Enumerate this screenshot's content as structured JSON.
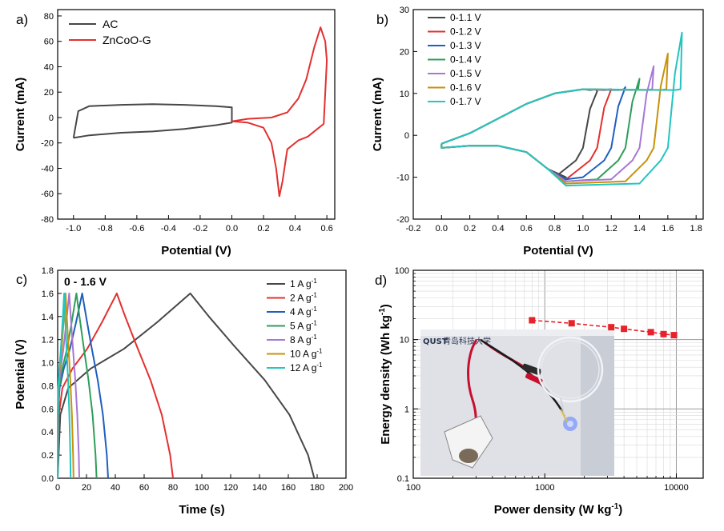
{
  "chart_data": [
    {
      "panel_label": "a)",
      "type": "line",
      "xlabel": "Potential (V)",
      "ylabel": "Current (mA)",
      "xlim": [
        -1.1,
        0.65
      ],
      "ylim": [
        -80,
        85
      ],
      "xticks": [
        -1.0,
        -0.8,
        -0.6,
        -0.4,
        -0.2,
        0.0,
        0.2,
        0.4,
        0.6
      ],
      "xtick_labels": [
        "-1.0",
        "-0.8",
        "-0.6",
        "-0.4",
        "-0.2",
        "0.0",
        "0.2",
        "0.4",
        "0.6"
      ],
      "yticks": [
        -80,
        -60,
        -40,
        -20,
        0,
        20,
        40,
        60,
        80
      ],
      "ytick_labels": [
        "-80",
        "-60",
        "-40",
        "-20",
        "0",
        "20",
        "40",
        "60",
        "80"
      ],
      "legend_position": "top-left",
      "series": [
        {
          "name": "AC",
          "color": "#474747",
          "points": [
            [
              -1.0,
              -16
            ],
            [
              -0.9,
              -14
            ],
            [
              -0.7,
              -12
            ],
            [
              -0.5,
              -11
            ],
            [
              -0.3,
              -9
            ],
            [
              -0.1,
              -6
            ],
            [
              0.0,
              -4
            ],
            [
              0.0,
              8
            ],
            [
              -0.1,
              9
            ],
            [
              -0.3,
              10
            ],
            [
              -0.5,
              10.5
            ],
            [
              -0.7,
              10
            ],
            [
              -0.9,
              9
            ],
            [
              -0.97,
              5
            ],
            [
              -1.0,
              -16
            ]
          ]
        },
        {
          "name": "ZnCoO-G",
          "color": "#e3302f",
          "points": [
            [
              0.0,
              -3
            ],
            [
              0.1,
              -4
            ],
            [
              0.2,
              -8
            ],
            [
              0.25,
              -20
            ],
            [
              0.28,
              -40
            ],
            [
              0.3,
              -62
            ],
            [
              0.32,
              -50
            ],
            [
              0.35,
              -25
            ],
            [
              0.42,
              -18
            ],
            [
              0.48,
              -15
            ],
            [
              0.53,
              -10
            ],
            [
              0.58,
              -5
            ],
            [
              0.6,
              45
            ],
            [
              0.59,
              60
            ],
            [
              0.56,
              71
            ],
            [
              0.52,
              55
            ],
            [
              0.47,
              30
            ],
            [
              0.42,
              15
            ],
            [
              0.35,
              4
            ],
            [
              0.25,
              0
            ],
            [
              0.1,
              -1
            ],
            [
              0.0,
              -3
            ]
          ]
        }
      ]
    },
    {
      "panel_label": "b)",
      "type": "line",
      "xlabel": "Potential (V)",
      "ylabel": "Current (mA)",
      "xlim": [
        -0.2,
        1.85
      ],
      "ylim": [
        -20,
        30
      ],
      "xticks": [
        -0.2,
        0.0,
        0.2,
        0.4,
        0.6,
        0.8,
        1.0,
        1.2,
        1.4,
        1.6,
        1.8
      ],
      "xtick_labels": [
        "-0.2",
        "0.0",
        "0.2",
        "0.4",
        "0.6",
        "0.8",
        "1.0",
        "1.2",
        "1.4",
        "1.6",
        "1.8"
      ],
      "yticks": [
        -20,
        -10,
        0,
        10,
        20,
        30
      ],
      "ytick_labels": [
        "-20",
        "-10",
        "0",
        "10",
        "20",
        "30"
      ],
      "legend_position": "top-left",
      "series": [
        {
          "name": "0-1.1 V",
          "color": "#474747",
          "vmax": 1.1,
          "top": 10.5,
          "bottom": -10
        },
        {
          "name": "0-1.2 V",
          "color": "#e3302f",
          "vmax": 1.2,
          "top": 11.0,
          "bottom": -10.5
        },
        {
          "name": "0-1.3 V",
          "color": "#1f5fbf",
          "vmax": 1.3,
          "top": 11.5,
          "bottom": -10.5
        },
        {
          "name": "0-1.4 V",
          "color": "#2f9e5a",
          "vmax": 1.4,
          "top": 13.5,
          "bottom": -11
        },
        {
          "name": "0-1.5 V",
          "color": "#a678d6",
          "vmax": 1.5,
          "top": 16.5,
          "bottom": -11
        },
        {
          "name": "0-1.6 V",
          "color": "#c8920b",
          "vmax": 1.6,
          "top": 19.5,
          "bottom": -11.5
        },
        {
          "name": "0-1.7 V",
          "color": "#23c4c1",
          "vmax": 1.7,
          "top": 24.5,
          "bottom": -12
        }
      ]
    },
    {
      "panel_label": "c)",
      "type": "line",
      "xlabel": "Time (s)",
      "ylabel": "Potential (V)",
      "annotation": "0 - 1.6 V",
      "xlim": [
        0,
        200
      ],
      "ylim": [
        0,
        1.8
      ],
      "xticks": [
        0,
        20,
        40,
        60,
        80,
        100,
        120,
        140,
        160,
        180,
        200
      ],
      "xtick_labels": [
        "0",
        "20",
        "40",
        "60",
        "80",
        "100",
        "120",
        "140",
        "160",
        "180",
        "200"
      ],
      "yticks": [
        0.0,
        0.2,
        0.4,
        0.6,
        0.8,
        1.0,
        1.2,
        1.4,
        1.6,
        1.8
      ],
      "ytick_labels": [
        "0.0",
        "0.2",
        "0.4",
        "0.6",
        "0.8",
        "1.0",
        "1.2",
        "1.4",
        "1.6",
        "1.8"
      ],
      "legend_position": "top-right",
      "series": [
        {
          "name": "1 A g",
          "sup": "-1",
          "color": "#474747",
          "peak_t": 92,
          "end_t": 178
        },
        {
          "name": "2 A g",
          "sup": "-1",
          "color": "#e3302f",
          "peak_t": 41,
          "end_t": 80
        },
        {
          "name": "4 A g",
          "sup": "-1",
          "color": "#1f5fbf",
          "peak_t": 17,
          "end_t": 35
        },
        {
          "name": "5 A g",
          "sup": "-1",
          "color": "#2f9e5a",
          "peak_t": 13,
          "end_t": 27
        },
        {
          "name": "8 A g",
          "sup": "-1",
          "color": "#a678d6",
          "peak_t": 8,
          "end_t": 15
        },
        {
          "name": "10 A g",
          "sup": "-1",
          "color": "#c8920b",
          "peak_t": 5.5,
          "end_t": 11
        },
        {
          "name": "12 A g",
          "sup": "-1",
          "color": "#23c4c1",
          "peak_t": 4.5,
          "end_t": 9
        }
      ]
    },
    {
      "panel_label": "d)",
      "type": "scatter",
      "xlabel": "Power density (W kg",
      "xlabel_sup": "-1",
      "xlabel_end": ")",
      "ylabel": "Energy density (Wh kg",
      "ylabel_sup": "-1",
      "ylabel_end": ")",
      "xscale": "log",
      "yscale": "log",
      "xlim": [
        100,
        16000
      ],
      "ylim": [
        0.1,
        100
      ],
      "xticks": [
        100,
        1000,
        10000
      ],
      "xtick_labels": [
        "100",
        "1000",
        "10000"
      ],
      "yticks": [
        0.1,
        1,
        10,
        100
      ],
      "ytick_labels": [
        "0.1",
        "1",
        "10",
        "100"
      ],
      "grid": true,
      "series": [
        {
          "color": "#e8212a",
          "x": [
            800,
            1600,
            3200,
            4000,
            6400,
            8000,
            9600
          ],
          "y": [
            19.0,
            17.2,
            15.1,
            14.3,
            12.8,
            12.0,
            11.6
          ]
        }
      ],
      "inset_photo": {
        "caption": "青岛科技大学",
        "logo": "QUST"
      }
    }
  ]
}
